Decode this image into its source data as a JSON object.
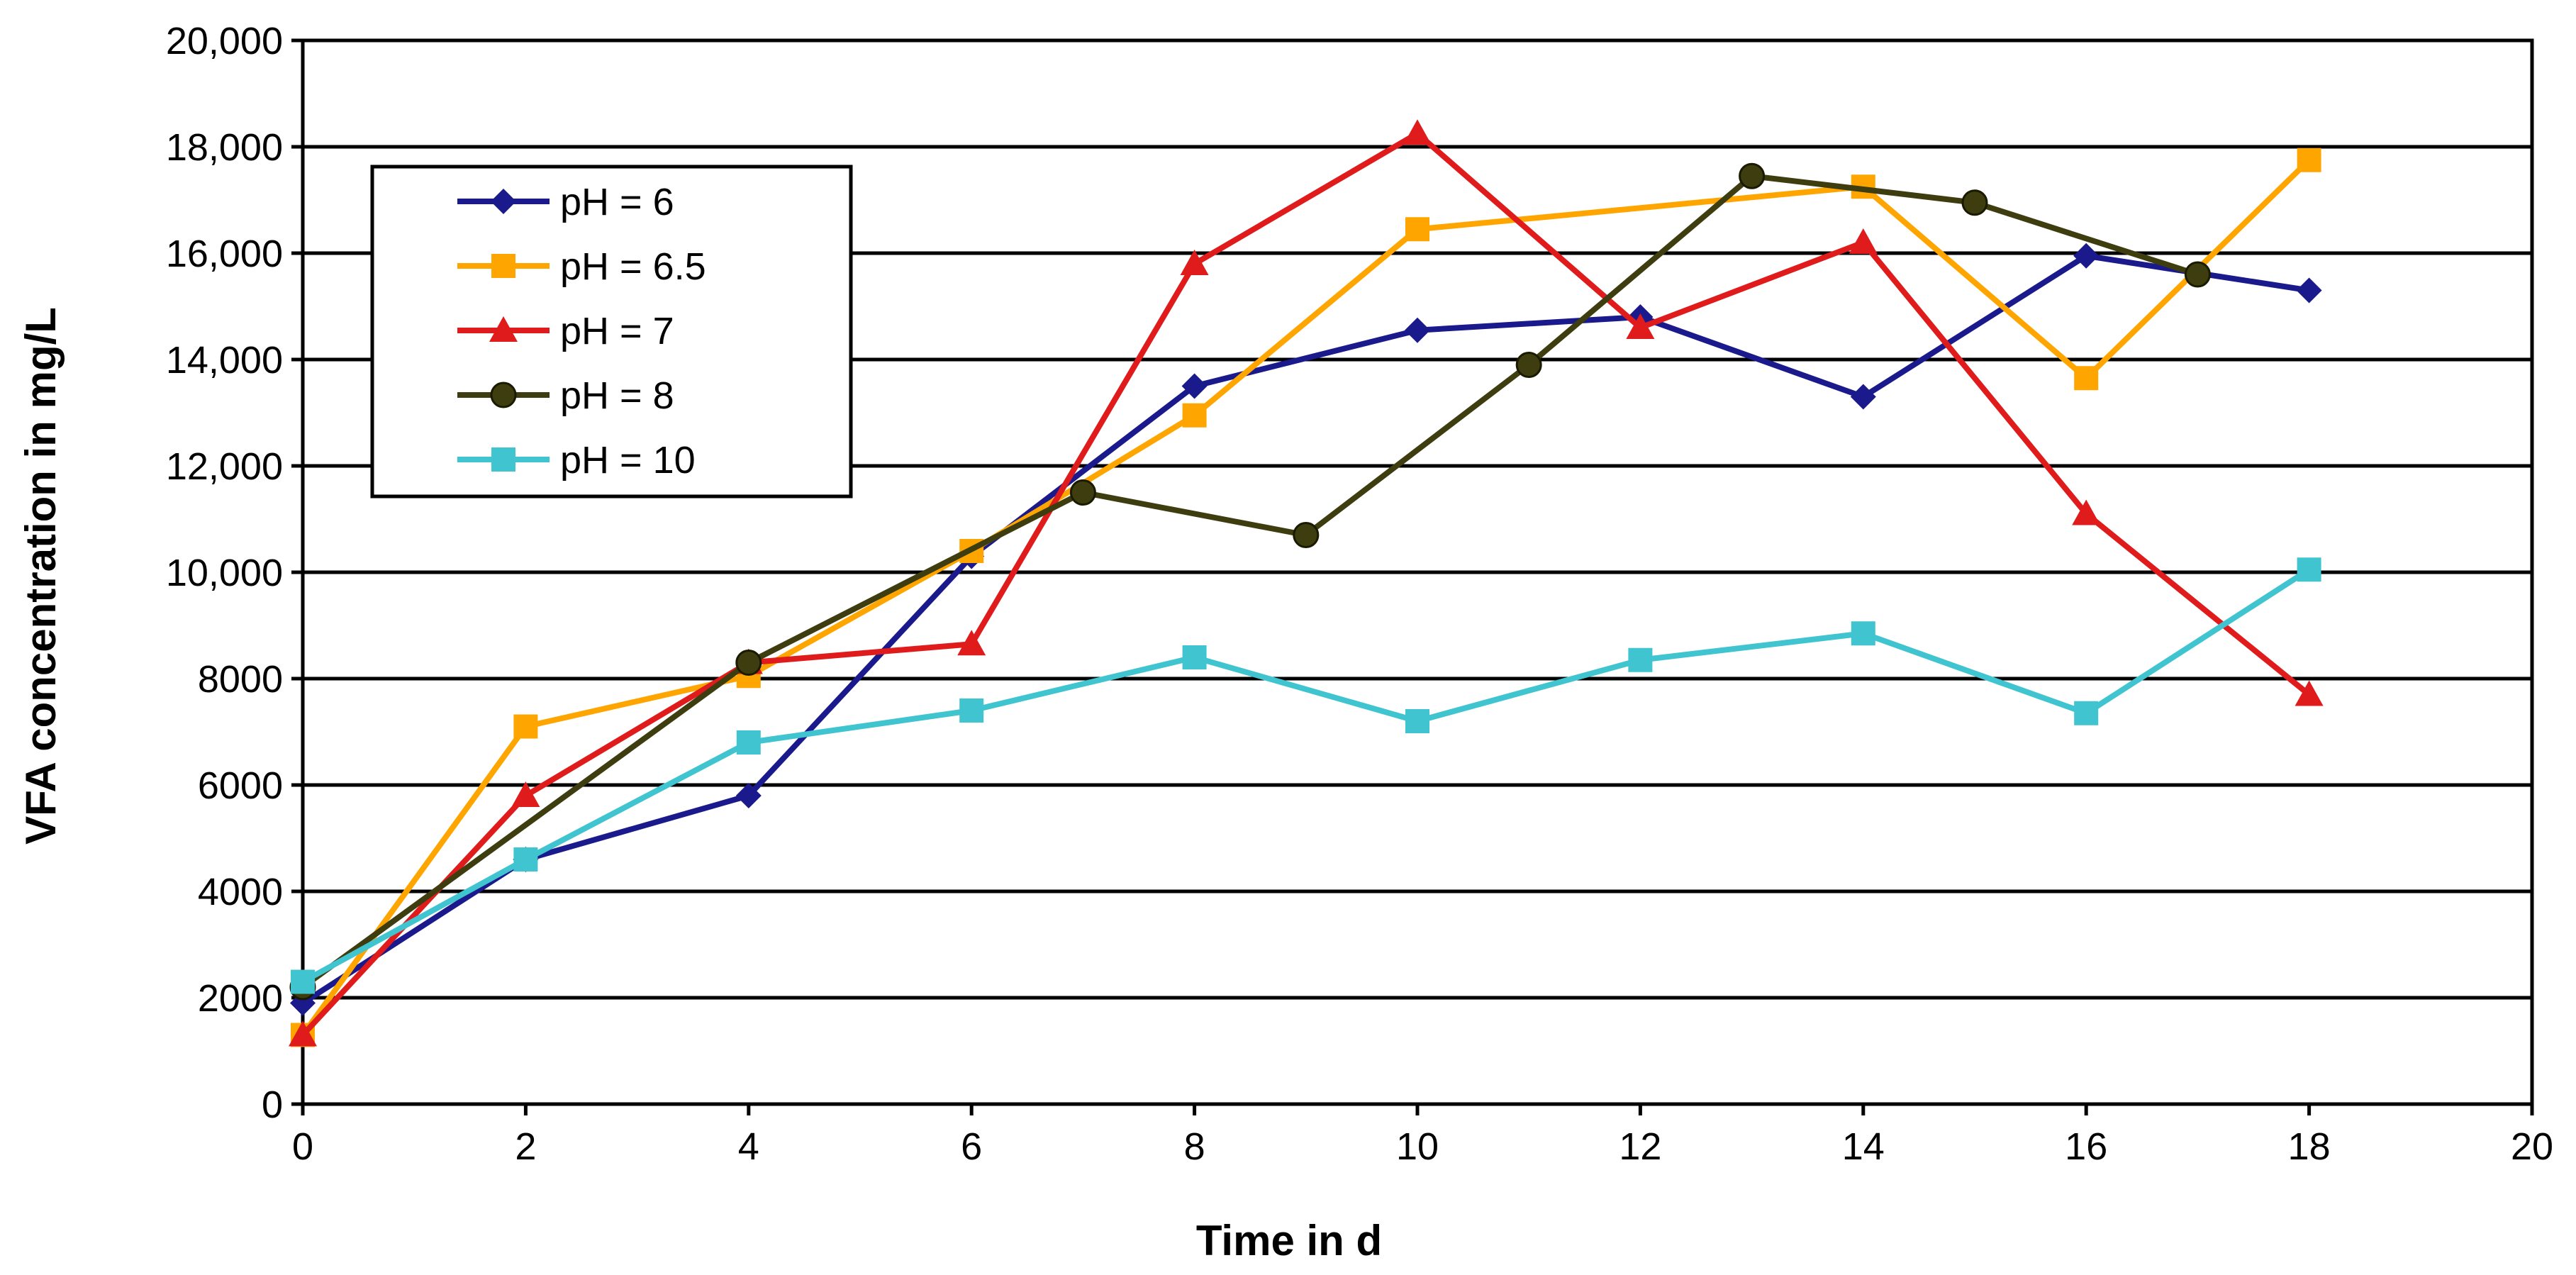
{
  "chart_data": {
    "type": "line",
    "title": "",
    "xlabel": "Time in d",
    "ylabel": "VFA concentration in mg/L",
    "xlim": [
      0,
      20
    ],
    "ylim": [
      0,
      20000
    ],
    "x_ticks": [
      "0",
      "2",
      "4",
      "6",
      "8",
      "10",
      "12",
      "14",
      "16",
      "18",
      "20"
    ],
    "y_ticks": [
      "0",
      "2000",
      "4000",
      "6000",
      "8000",
      "10,000",
      "12,000",
      "14,000",
      "16,000",
      "18,000",
      "20,000"
    ],
    "grid": "horizontal",
    "legend_position": "top-left",
    "series": [
      {
        "name": "pH = 6",
        "color": "#1a1a8c",
        "marker": "diamond",
        "x": [
          0,
          2,
          4,
          6,
          8,
          10,
          12,
          14,
          16,
          18
        ],
        "y": [
          1900,
          4600,
          5800,
          10300,
          13500,
          14550,
          14800,
          13300,
          15950,
          15300
        ]
      },
      {
        "name": "pH = 6.5",
        "color": "#ffa500",
        "marker": "square",
        "x": [
          0,
          2,
          4,
          6,
          8,
          10,
          14,
          16,
          18
        ],
        "y": [
          1300,
          7100,
          8050,
          10400,
          12950,
          16450,
          17250,
          13650,
          17750
        ]
      },
      {
        "name": "pH = 7",
        "color": "#e01b1b",
        "marker": "triangle",
        "x": [
          0,
          2,
          4,
          6,
          8,
          10,
          12,
          14,
          16,
          18
        ],
        "y": [
          1300,
          5800,
          8300,
          8650,
          15800,
          18250,
          14600,
          16200,
          11100,
          7700
        ]
      },
      {
        "name": "pH = 8",
        "color": "#3d3d10",
        "marker": "circle",
        "x": [
          0,
          4,
          7,
          9,
          11,
          13,
          15,
          17
        ],
        "y": [
          2200,
          8300,
          11500,
          10700,
          13900,
          17450,
          16950,
          15600
        ]
      },
      {
        "name": "pH = 10",
        "color": "#40c4d0",
        "marker": "square",
        "x": [
          0,
          2,
          4,
          6,
          8,
          10,
          12,
          14,
          16,
          18
        ],
        "y": [
          2300,
          4600,
          6800,
          7400,
          8400,
          7200,
          8350,
          8850,
          7350,
          10050
        ]
      }
    ]
  }
}
